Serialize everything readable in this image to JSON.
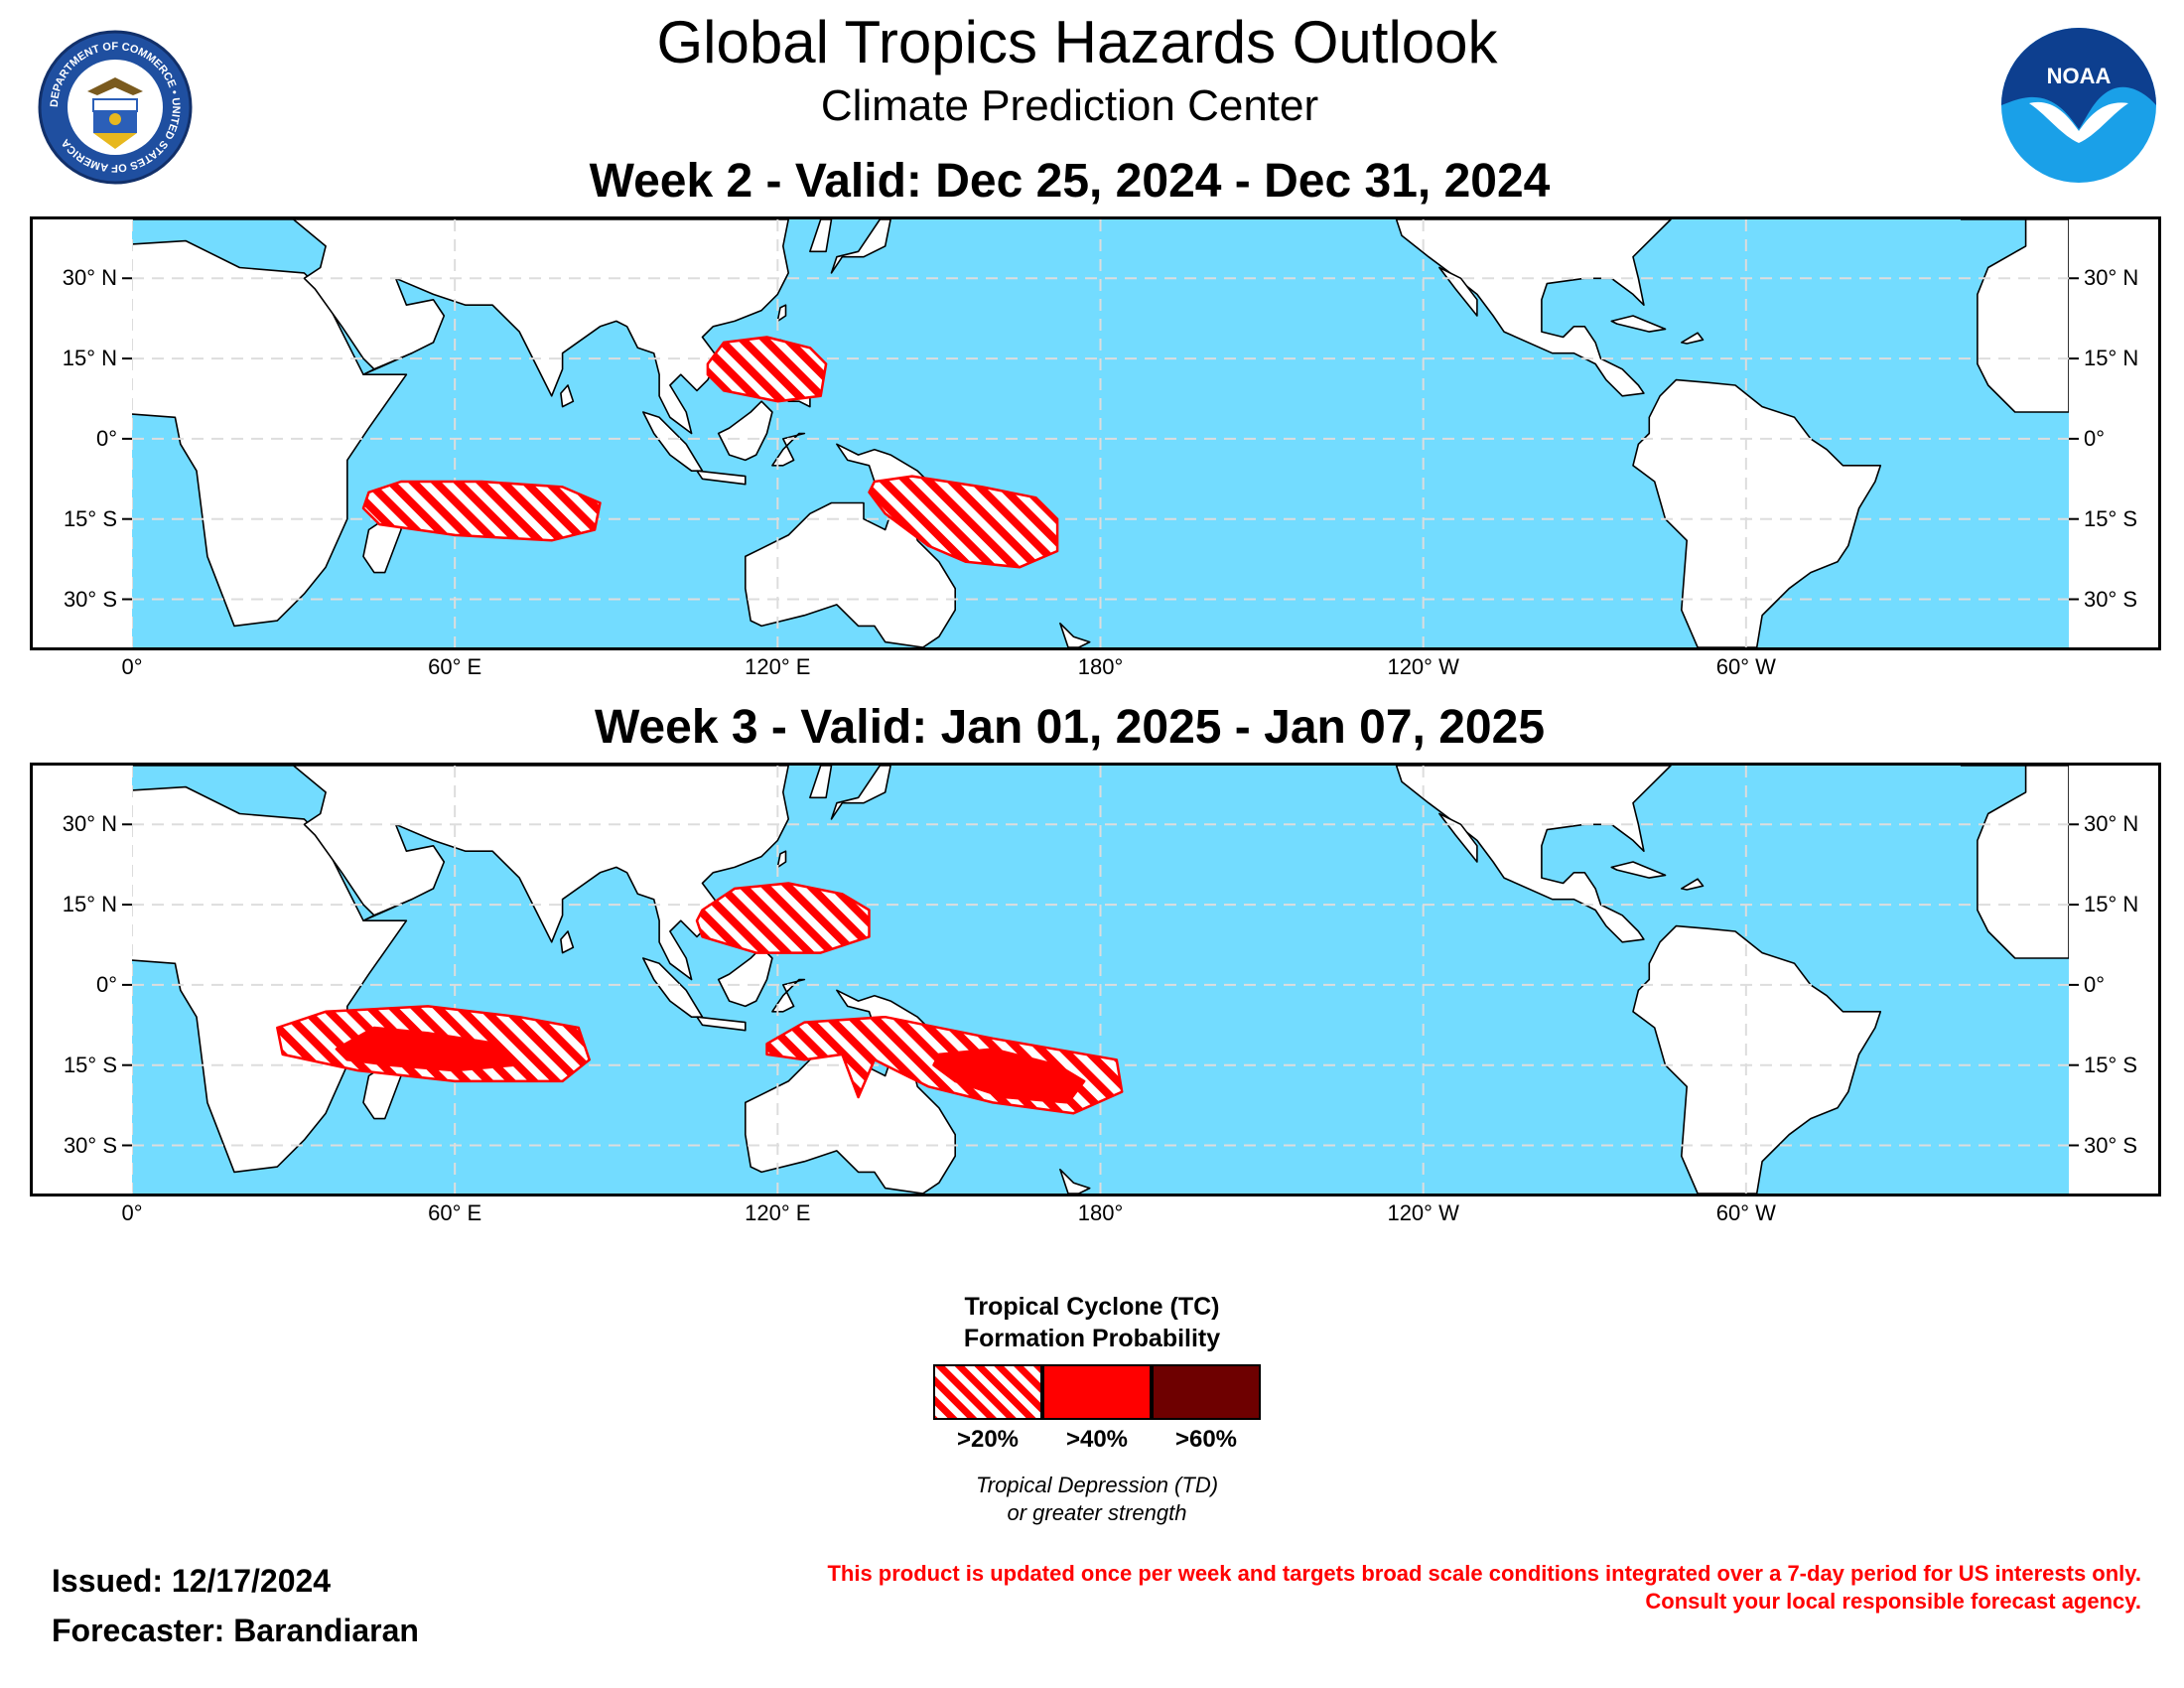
{
  "header": {
    "title": "Global Tropics Hazards Outlook",
    "subtitle": "Climate Prediction Center",
    "left_logo": {
      "icon": "department-of-commerce-seal-icon",
      "text": "DEPARTMENT OF COMMERCE • UNITED STATES OF AMERICA"
    },
    "right_logo": {
      "icon": "noaa-logo-icon",
      "text": "NOAA"
    }
  },
  "colors": {
    "ocean": "#73dcff",
    "land": "#ffffff",
    "coast": "#000000",
    "grid": "#dddddd",
    "prob_20": "#ff0000",
    "prob_40": "#ff0000",
    "prob_60": "#6e0000"
  },
  "map": {
    "lon_labels": [
      "0°",
      "60° E",
      "120° E",
      "180°",
      "120° W",
      "60° W"
    ],
    "lat_labels_left": [
      "30° N",
      "15° N",
      "0°",
      "15° S",
      "30° S"
    ],
    "lat_labels_right": [
      "30° N",
      "15° N",
      "0°",
      "15° S",
      "30° S"
    ]
  },
  "week2": {
    "title": "Week 2 - Valid: Dec 25, 2024 - Dec 31, 2024",
    "hazards": [
      {
        "region": "South China Sea / Philippines",
        "category": ">20%"
      },
      {
        "region": "South Indian Ocean",
        "category": ">20%"
      },
      {
        "region": "Coral Sea / Southwest Pacific",
        "category": ">20%"
      }
    ]
  },
  "week3": {
    "title": "Week 3 - Valid: Jan 01, 2025 - Jan 07, 2025",
    "hazards": [
      {
        "region": "South China Sea / Philippines",
        "category": ">20%"
      },
      {
        "region": "Southwest Indian Ocean",
        "category": ">20%"
      },
      {
        "region": "Southwest Indian Ocean core",
        "category": ">40%"
      },
      {
        "region": "Northern Australia / Coral Sea",
        "category": ">20%"
      },
      {
        "region": "Southwest Pacific core",
        "category": ">40%"
      }
    ]
  },
  "legend": {
    "title_line1": "Tropical Cyclone (TC)",
    "title_line2": "Formation Probability",
    "items": [
      ">20%",
      ">40%",
      ">60%"
    ],
    "note_line1": "Tropical Depression (TD)",
    "note_line2": "or greater strength"
  },
  "footer": {
    "issued": "Issued: 12/17/2024",
    "forecaster": "Forecaster: Barandiaran",
    "disclaimer_line1": "This product is updated once per week and targets broad scale conditions integrated over a 7-day period for US interests only.",
    "disclaimer_line2": "Consult your local responsible forecast agency."
  }
}
